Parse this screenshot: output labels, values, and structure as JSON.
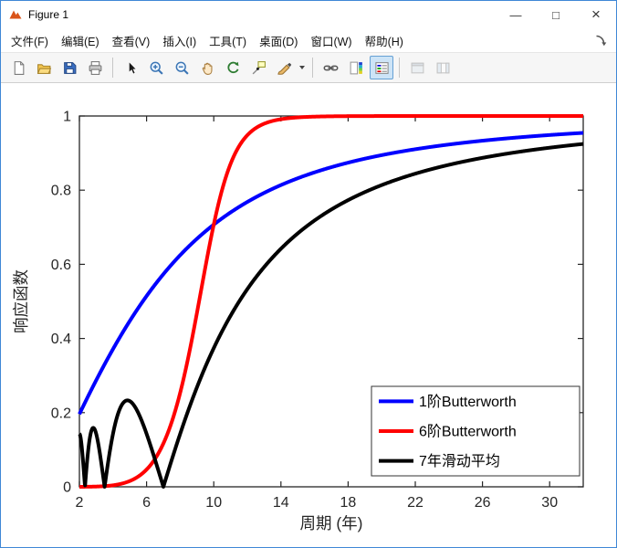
{
  "window": {
    "title": "Figure 1",
    "accent_border_color": "#3f87d6",
    "controls": {
      "minimize": "—",
      "maximize": "□",
      "close": "×"
    }
  },
  "menu": {
    "items": [
      {
        "id": "file",
        "label": "文件(F)"
      },
      {
        "id": "edit",
        "label": "编辑(E)"
      },
      {
        "id": "view",
        "label": "查看(V)"
      },
      {
        "id": "insert",
        "label": "插入(I)"
      },
      {
        "id": "tools",
        "label": "工具(T)"
      },
      {
        "id": "desktop",
        "label": "桌面(D)"
      },
      {
        "id": "window",
        "label": "窗口(W)"
      },
      {
        "id": "help",
        "label": "帮助(H)"
      }
    ]
  },
  "toolbar": {
    "buttons": [
      {
        "id": "new-figure",
        "icon": "new-document"
      },
      {
        "id": "open-file",
        "icon": "open-folder"
      },
      {
        "id": "save-figure",
        "icon": "save"
      },
      {
        "id": "print-figure",
        "icon": "print"
      },
      {
        "sep": true
      },
      {
        "id": "edit-plot",
        "icon": "cursor"
      },
      {
        "id": "zoom-in",
        "icon": "zoom-in"
      },
      {
        "id": "zoom-out",
        "icon": "zoom-out"
      },
      {
        "id": "pan",
        "icon": "pan-hand"
      },
      {
        "id": "rotate-3d",
        "icon": "rotate-3d"
      },
      {
        "id": "data-cursor",
        "icon": "data-cursor"
      },
      {
        "id": "brush",
        "icon": "brush",
        "has_dropdown": true
      },
      {
        "sep": true
      },
      {
        "id": "link-plots",
        "icon": "link-plots"
      },
      {
        "id": "insert-colorbar",
        "icon": "insert-colorbar"
      },
      {
        "id": "insert-legend",
        "icon": "insert-legend",
        "selected": true
      },
      {
        "sep": true
      },
      {
        "id": "hide-plot-tools",
        "icon": "hide-plot-tools",
        "disabled": true
      },
      {
        "id": "show-plot-tools",
        "icon": "show-plot-tools",
        "disabled": true
      }
    ]
  },
  "chart_data": {
    "type": "line",
    "title": "",
    "xlabel": "周期 (年)",
    "ylabel": "响应函数",
    "xlim": [
      2,
      32
    ],
    "ylim": [
      0,
      1
    ],
    "xticks": [
      2,
      6,
      10,
      14,
      18,
      22,
      26,
      30
    ],
    "yticks": [
      0,
      0.2,
      0.4,
      0.6,
      0.8,
      1
    ],
    "ytick_labels": [
      "0",
      "0.2",
      "0.4",
      "0.6",
      "0.8",
      "1"
    ],
    "grid": false,
    "box": true,
    "axes_color": "#262626",
    "background": "#ffffff",
    "legend": {
      "position": "southeast",
      "border_color": "#333333",
      "entries": [
        "1阶Butterworth",
        "6阶Butterworth",
        "7年滑动平均"
      ]
    },
    "series": [
      {
        "id": "butterworth-order-1",
        "name": "1阶Butterworth",
        "color": "#0000ff",
        "line_width": 4,
        "model": {
          "kind": "butterworth",
          "order": 1,
          "cutoff_period_years": 10
        },
        "reference_points": {
          "x": [
            2,
            4,
            6,
            8,
            10,
            12,
            14,
            16,
            18,
            20,
            22,
            24,
            26,
            28,
            30,
            32
          ],
          "y": [
            0.196,
            0.371,
            0.514,
            0.625,
            0.707,
            0.768,
            0.814,
            0.848,
            0.874,
            0.894,
            0.91,
            0.923,
            0.933,
            0.942,
            0.949,
            0.954
          ]
        }
      },
      {
        "id": "butterworth-order-6",
        "name": "6阶Butterworth",
        "color": "#ff0000",
        "line_width": 4,
        "model": {
          "kind": "butterworth",
          "order": 6,
          "cutoff_period_years": 10
        },
        "reference_points": {
          "x": [
            2,
            4,
            6,
            8,
            10,
            12,
            14,
            16,
            18,
            20,
            22,
            24,
            26,
            28,
            30,
            32
          ],
          "y": [
            0.0,
            0.004,
            0.047,
            0.254,
            0.707,
            0.948,
            0.991,
            0.998,
            1.0,
            1.0,
            1.0,
            1.0,
            1.0,
            1.0,
            1.0,
            1.0
          ]
        }
      },
      {
        "id": "moving-average-7yr",
        "name": "7年滑动平均",
        "color": "#000000",
        "line_width": 4,
        "model": {
          "kind": "moving_average",
          "window_years": 7
        },
        "zeros_at_period": [
          2.333,
          3.5,
          7
        ],
        "local_maxima": [
          {
            "x": 2.8,
            "y": 0.159
          },
          {
            "x": 4.67,
            "y": 0.229
          }
        ],
        "reference_points": {
          "x": [
            2,
            4,
            6,
            8,
            10,
            12,
            14,
            16,
            18,
            20,
            22,
            24,
            26,
            28,
            30,
            32
          ],
          "y": [
            0.143,
            0.143,
            0.143,
            0.143,
            0.374,
            0.533,
            0.642,
            0.718,
            0.773,
            0.814,
            0.845,
            0.868,
            0.887,
            0.902,
            0.914,
            0.925
          ]
        }
      }
    ]
  }
}
